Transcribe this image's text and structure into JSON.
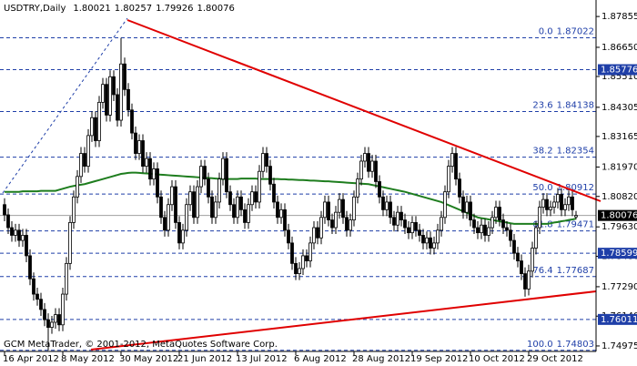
{
  "chart_data": {
    "type": "candlestick",
    "header": {
      "symbol": "USDTRY,Daily",
      "open": 1.80021,
      "high": 1.80257,
      "low": 1.79926,
      "close": 1.80076
    },
    "footer": "GCM MetaTrader, © 2001-2012, MetaQuotes Software Corp.",
    "categories": [
      "16 Apr 2012",
      null,
      null,
      null,
      null,
      null,
      null,
      null,
      null,
      null,
      null,
      null,
      null,
      null,
      null,
      null,
      "8 May 2012",
      null,
      null,
      null,
      null,
      null,
      null,
      null,
      null,
      null,
      null,
      null,
      null,
      null,
      null,
      null,
      "30 May 2012",
      null,
      null,
      null,
      null,
      null,
      null,
      null,
      null,
      null,
      null,
      null,
      null,
      null,
      null,
      null,
      "21 Jun 2012",
      null,
      null,
      null,
      null,
      null,
      null,
      null,
      null,
      null,
      null,
      null,
      null,
      null,
      null,
      null,
      "13 Jul 2012",
      null,
      null,
      null,
      null,
      null,
      null,
      null,
      null,
      null,
      null,
      null,
      null,
      null,
      null,
      null,
      "6 Aug 2012",
      null,
      null,
      null,
      null,
      null,
      null,
      null,
      null,
      null,
      null,
      null,
      null,
      null,
      null,
      null,
      "28 Aug 2012",
      null,
      null,
      null,
      null,
      null,
      null,
      null,
      null,
      null,
      null,
      null,
      null,
      null,
      null,
      null,
      "19 Sep 2012",
      null,
      null,
      null,
      null,
      null,
      null,
      null,
      null,
      null,
      null,
      null,
      null,
      null,
      null,
      null,
      "10 Oct 2012",
      null,
      null,
      null,
      null,
      null,
      null,
      null,
      null,
      null,
      null,
      null,
      null,
      null,
      null,
      null,
      "29 Oct 2012",
      null,
      null,
      null,
      null,
      null,
      null,
      null,
      null,
      null,
      null,
      null,
      null,
      null
    ],
    "open": [
      1.805,
      1.801,
      1.796,
      1.793,
      1.795,
      1.791,
      1.793,
      1.785,
      1.776,
      1.77,
      1.768,
      1.764,
      1.76,
      1.757,
      1.759,
      1.762,
      1.758,
      1.77,
      1.782,
      1.798,
      1.808,
      1.816,
      1.825,
      1.82,
      1.832,
      1.839,
      1.83,
      1.845,
      1.852,
      1.84,
      1.855,
      1.848,
      1.838,
      1.86,
      1.85,
      1.842,
      1.833,
      1.825,
      1.83,
      1.82,
      1.823,
      1.815,
      1.819,
      1.808,
      1.8,
      1.795,
      1.805,
      1.812,
      1.798,
      1.79,
      1.795,
      1.805,
      1.81,
      1.8,
      1.812,
      1.82,
      1.815,
      1.808,
      1.8,
      1.806,
      1.815,
      1.823,
      1.81,
      1.805,
      1.8,
      1.808,
      1.803,
      1.798,
      1.805,
      1.81,
      1.806,
      1.818,
      1.825,
      1.82,
      1.813,
      1.806,
      1.8,
      1.803,
      1.795,
      1.79,
      1.782,
      1.778,
      1.78,
      1.785,
      1.783,
      1.79,
      1.796,
      1.792,
      1.8,
      1.806,
      1.799,
      1.796,
      1.802,
      1.807,
      1.8,
      1.795,
      1.799,
      1.808,
      1.815,
      1.822,
      1.825,
      1.818,
      1.822,
      1.814,
      1.808,
      1.803,
      1.806,
      1.8,
      1.797,
      1.802,
      1.799,
      1.796,
      1.794,
      1.798,
      1.795,
      1.793,
      1.79,
      1.792,
      1.788,
      1.79,
      1.795,
      1.8,
      1.81,
      1.82,
      1.825,
      1.815,
      1.808,
      1.802,
      1.806,
      1.799,
      1.796,
      1.794,
      1.797,
      1.793,
      1.796,
      1.8,
      1.804,
      1.799,
      1.796,
      1.795,
      1.791,
      1.786,
      1.783,
      1.778,
      1.772,
      1.779,
      1.788,
      1.796,
      1.804,
      1.807,
      1.803,
      1.804,
      1.806,
      1.809,
      1.803,
      1.805,
      1.808,
      1.80021
    ],
    "high": [
      1.8075,
      1.8035,
      1.7985,
      1.7975,
      1.7975,
      1.7955,
      1.7955,
      1.7875,
      1.7785,
      1.7725,
      1.7705,
      1.7665,
      1.7625,
      1.7615,
      1.7645,
      1.7645,
      1.7725,
      1.7845,
      1.8005,
      1.8105,
      1.8185,
      1.8275,
      1.8275,
      1.8345,
      1.8415,
      1.8415,
      1.8475,
      1.8545,
      1.8545,
      1.8575,
      1.8575,
      1.8505,
      1.8702,
      1.8625,
      1.8525,
      1.8445,
      1.8355,
      1.8325,
      1.8325,
      1.8255,
      1.8255,
      1.8215,
      1.8215,
      1.8105,
      1.8025,
      1.8075,
      1.8145,
      1.8145,
      1.8005,
      1.7975,
      1.8075,
      1.8125,
      1.8125,
      1.8145,
      1.8225,
      1.8225,
      1.8175,
      1.8105,
      1.8085,
      1.8175,
      1.8255,
      1.8255,
      1.8125,
      1.8075,
      1.8105,
      1.8105,
      1.8055,
      1.8075,
      1.8125,
      1.8125,
      1.8205,
      1.8275,
      1.8275,
      1.8225,
      1.8155,
      1.8085,
      1.8055,
      1.8055,
      1.7975,
      1.7925,
      1.7845,
      1.7825,
      1.7875,
      1.7875,
      1.7925,
      1.7985,
      1.7985,
      1.8025,
      1.8085,
      1.8085,
      1.8015,
      1.8045,
      1.8095,
      1.8095,
      1.8025,
      1.8015,
      1.8105,
      1.8175,
      1.8245,
      1.8275,
      1.8275,
      1.8245,
      1.8245,
      1.8165,
      1.8105,
      1.8085,
      1.8085,
      1.8025,
      1.8045,
      1.8045,
      1.8015,
      1.7985,
      1.8005,
      1.8005,
      1.7975,
      1.7955,
      1.7945,
      1.7945,
      1.7925,
      1.7975,
      1.8025,
      1.8125,
      1.8225,
      1.8275,
      1.8275,
      1.8175,
      1.8105,
      1.8085,
      1.8085,
      1.8015,
      1.7985,
      1.7995,
      1.7995,
      1.7985,
      1.8025,
      1.8065,
      1.8065,
      1.8015,
      1.7985,
      1.7975,
      1.7935,
      1.7885,
      1.7855,
      1.7805,
      1.7815,
      1.7905,
      1.7985,
      1.8065,
      1.8095,
      1.8095,
      1.8065,
      1.8085,
      1.8115,
      1.8115,
      1.8075,
      1.8105,
      1.8105,
      1.80257
    ],
    "low": [
      1.7985,
      1.7935,
      1.7905,
      1.7905,
      1.7885,
      1.7885,
      1.7825,
      1.7735,
      1.7675,
      1.7655,
      1.7615,
      1.7575,
      1.748,
      1.7545,
      1.7565,
      1.7555,
      1.7555,
      1.7675,
      1.7795,
      1.7955,
      1.8055,
      1.8135,
      1.8175,
      1.8175,
      1.8295,
      1.8275,
      1.8275,
      1.8425,
      1.8375,
      1.8375,
      1.8455,
      1.8355,
      1.8355,
      1.8475,
      1.8395,
      1.8305,
      1.8225,
      1.8225,
      1.8175,
      1.8175,
      1.8125,
      1.8125,
      1.8055,
      1.7975,
      1.7925,
      1.7925,
      1.8025,
      1.7955,
      1.7875,
      1.7875,
      1.7925,
      1.8025,
      1.7975,
      1.7975,
      1.8095,
      1.8125,
      1.8055,
      1.7975,
      1.7975,
      1.8035,
      1.8125,
      1.8075,
      1.8025,
      1.7975,
      1.7975,
      1.8005,
      1.7955,
      1.7955,
      1.8025,
      1.8035,
      1.8035,
      1.8155,
      1.8175,
      1.8105,
      1.8035,
      1.7975,
      1.7975,
      1.7925,
      1.7875,
      1.7795,
      1.7755,
      1.7755,
      1.7775,
      1.7805,
      1.7805,
      1.7875,
      1.7895,
      1.7895,
      1.7975,
      1.7965,
      1.7935,
      1.7935,
      1.7995,
      1.7975,
      1.7925,
      1.7925,
      1.7965,
      1.8055,
      1.8125,
      1.8195,
      1.8155,
      1.8155,
      1.8115,
      1.8055,
      1.8005,
      1.8005,
      1.7975,
      1.7945,
      1.7945,
      1.7965,
      1.7935,
      1.7915,
      1.7915,
      1.7925,
      1.7905,
      1.7875,
      1.7875,
      1.7855,
      1.7855,
      1.7875,
      1.7925,
      1.7975,
      1.8075,
      1.8175,
      1.8125,
      1.8055,
      1.7995,
      1.7995,
      1.7965,
      1.7935,
      1.7915,
      1.7915,
      1.7905,
      1.7905,
      1.7935,
      1.7975,
      1.7965,
      1.7935,
      1.7925,
      1.7885,
      1.7835,
      1.7805,
      1.7755,
      1.769,
      1.7695,
      1.7765,
      1.7855,
      1.7935,
      1.8015,
      1.8005,
      1.8005,
      1.8015,
      1.8035,
      1.8005,
      1.8005,
      1.8025,
      1.8005,
      1.79926
    ],
    "close": [
      1.801,
      1.796,
      1.793,
      1.795,
      1.791,
      1.793,
      1.785,
      1.776,
      1.77,
      1.768,
      1.764,
      1.76,
      1.757,
      1.759,
      1.762,
      1.758,
      1.77,
      1.782,
      1.798,
      1.808,
      1.816,
      1.825,
      1.82,
      1.832,
      1.839,
      1.83,
      1.845,
      1.852,
      1.84,
      1.855,
      1.848,
      1.838,
      1.86,
      1.85,
      1.842,
      1.833,
      1.825,
      1.83,
      1.82,
      1.823,
      1.815,
      1.819,
      1.808,
      1.8,
      1.795,
      1.805,
      1.812,
      1.798,
      1.79,
      1.795,
      1.805,
      1.81,
      1.8,
      1.812,
      1.82,
      1.815,
      1.808,
      1.8,
      1.806,
      1.815,
      1.823,
      1.81,
      1.805,
      1.8,
      1.808,
      1.803,
      1.798,
      1.805,
      1.81,
      1.806,
      1.818,
      1.825,
      1.82,
      1.813,
      1.806,
      1.8,
      1.803,
      1.795,
      1.79,
      1.782,
      1.778,
      1.78,
      1.785,
      1.783,
      1.79,
      1.796,
      1.792,
      1.8,
      1.806,
      1.799,
      1.796,
      1.802,
      1.807,
      1.8,
      1.795,
      1.799,
      1.808,
      1.815,
      1.822,
      1.825,
      1.818,
      1.822,
      1.814,
      1.808,
      1.803,
      1.806,
      1.8,
      1.797,
      1.802,
      1.799,
      1.796,
      1.794,
      1.798,
      1.795,
      1.793,
      1.79,
      1.792,
      1.788,
      1.79,
      1.795,
      1.8,
      1.81,
      1.82,
      1.825,
      1.815,
      1.808,
      1.802,
      1.806,
      1.799,
      1.796,
      1.794,
      1.797,
      1.793,
      1.796,
      1.8,
      1.804,
      1.799,
      1.796,
      1.795,
      1.791,
      1.786,
      1.783,
      1.778,
      1.772,
      1.779,
      1.788,
      1.796,
      1.804,
      1.807,
      1.803,
      1.804,
      1.806,
      1.809,
      1.803,
      1.805,
      1.808,
      1.803,
      1.80076
    ],
    "up_color": "#ffffff",
    "down_color": "#000000",
    "ma": {
      "color": "#1e7d1e",
      "values": [
        1.81,
        1.81,
        1.81,
        1.81,
        1.81,
        1.8102,
        1.8102,
        1.8102,
        1.8102,
        1.8102,
        1.8104,
        1.8104,
        1.8104,
        1.8104,
        1.8104,
        1.8108,
        1.8112,
        1.8116,
        1.812,
        1.8123,
        1.8126,
        1.8128,
        1.813,
        1.8134,
        1.8138,
        1.8142,
        1.8146,
        1.815,
        1.8154,
        1.8158,
        1.8162,
        1.8166,
        1.817,
        1.8172,
        1.8174,
        1.8175,
        1.8175,
        1.8174,
        1.8173,
        1.8172,
        1.8171,
        1.817,
        1.8168,
        1.8167,
        1.8166,
        1.8165,
        1.8164,
        1.8163,
        1.8162,
        1.8161,
        1.816,
        1.8159,
        1.8158,
        1.8157,
        1.8156,
        1.8155,
        1.8154,
        1.8153,
        1.8152,
        1.8151,
        1.815,
        1.815,
        1.815,
        1.815,
        1.815,
        1.8152,
        1.8152,
        1.8152,
        1.8152,
        1.8152,
        1.815,
        1.815,
        1.815,
        1.815,
        1.815,
        1.815,
        1.8149,
        1.8149,
        1.8148,
        1.8148,
        1.8147,
        1.8146,
        1.8146,
        1.8145,
        1.8144,
        1.8144,
        1.8143,
        1.8142,
        1.8141,
        1.8141,
        1.814,
        1.8139,
        1.8138,
        1.8137,
        1.8136,
        1.8135,
        1.8134,
        1.8133,
        1.8132,
        1.8131,
        1.813,
        1.8127,
        1.8124,
        1.8121,
        1.8118,
        1.8115,
        1.8112,
        1.8109,
        1.8106,
        1.8103,
        1.81,
        1.8096,
        1.8092,
        1.8088,
        1.8084,
        1.808,
        1.8076,
        1.8072,
        1.8068,
        1.8064,
        1.806,
        1.8054,
        1.8048,
        1.8042,
        1.8036,
        1.803,
        1.8024,
        1.8018,
        1.8012,
        1.8006,
        1.8,
        1.7997,
        1.7995,
        1.7992,
        1.799,
        1.7987,
        1.7985,
        1.7982,
        1.798,
        1.7977,
        1.7975,
        1.7975,
        1.7975,
        1.7975,
        1.7975,
        1.7975,
        1.7975,
        1.7975,
        1.7975,
        1.7975,
        1.7977,
        1.798,
        1.7982,
        1.7985,
        1.7987,
        1.799,
        1.7992,
        1.7995
      ]
    },
    "fib_color": "#1f3fa8",
    "fib_levels": [
      {
        "level": "0.0",
        "price": 1.87022
      },
      {
        "level": "23.6",
        "price": 1.84138
      },
      {
        "level": "38.2",
        "price": 1.82354
      },
      {
        "level": "50.0",
        "price": 1.80912
      },
      {
        "level": "61.8",
        "price": 1.79471
      },
      {
        "level": "76.4",
        "price": 1.77687
      },
      {
        "level": "100.0",
        "price": 1.74803
      }
    ],
    "levels": [
      1.85776,
      1.78599,
      1.76011
    ],
    "level_color": "#1f3fa8",
    "bid": 1.80076,
    "ylim": [
      1.7476,
      1.885
    ],
    "yticks": [
      1.87855,
      {
        "value": 1.8665,
        "label": "1.86650"
      },
      {
        "value": 1.8551,
        "label": "1.85510"
      },
      1.84305,
      1.83165,
      {
        "value": 1.8197,
        "label": "1.81970"
      },
      {
        "value": 1.8082,
        "label": "1.80820"
      },
      {
        "value": 1.7963,
        "label": "1.79630"
      },
      {
        "value": 1.7848,
        "label": "1.78480"
      },
      {
        "value": 1.7729,
        "label": "1.77290"
      },
      {
        "value": 1.7614,
        "label": "1.76140"
      },
      1.74975
    ]
  }
}
